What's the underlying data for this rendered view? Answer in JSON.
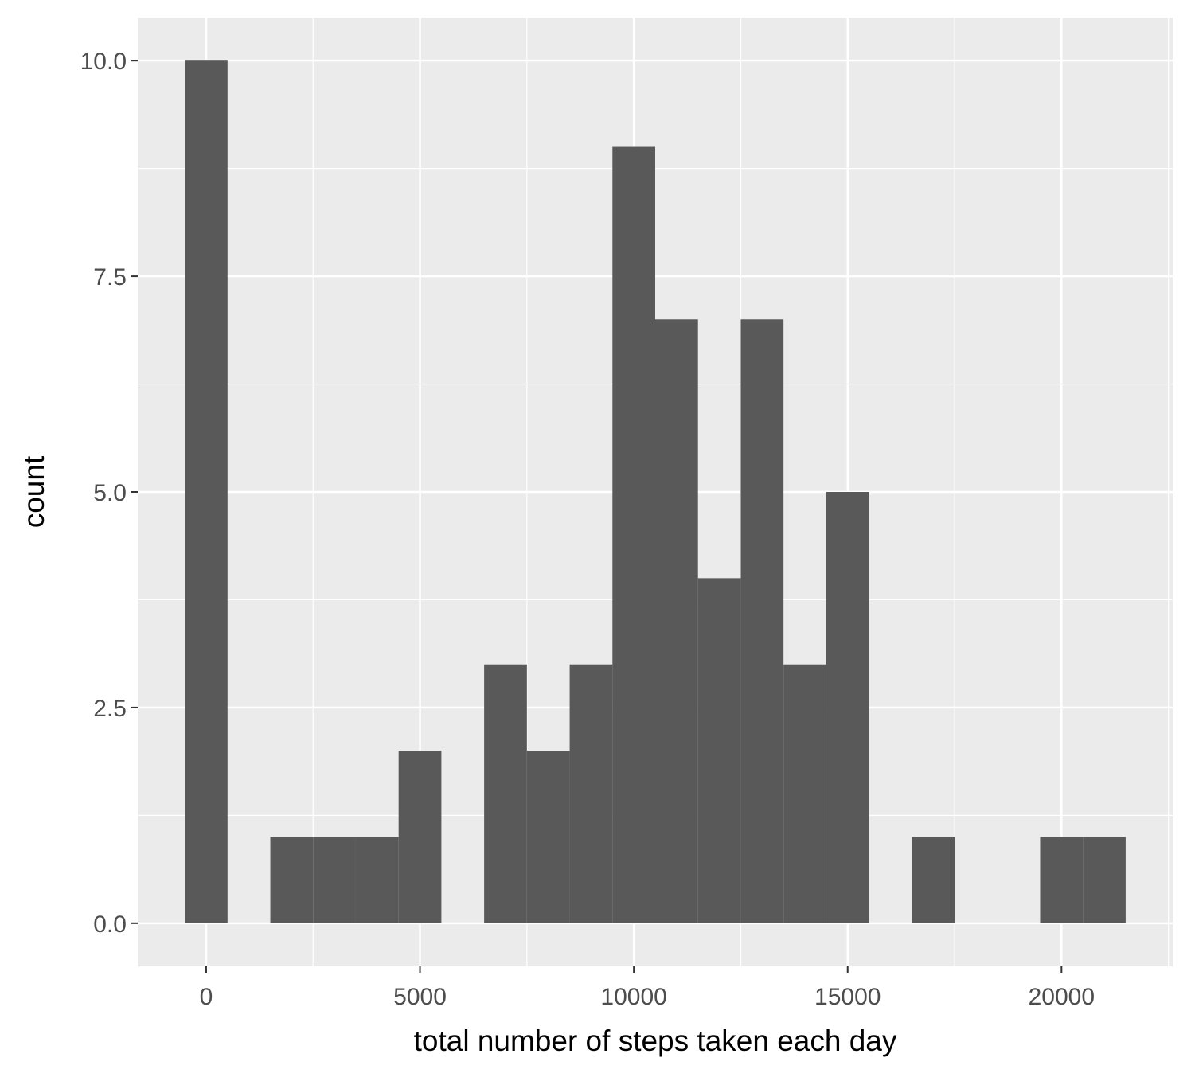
{
  "chart_data": {
    "type": "bar",
    "subtype": "histogram",
    "title": "",
    "xlabel": "total number of steps taken each day",
    "ylabel": "count",
    "xlim": [
      -1600,
      22600
    ],
    "ylim": [
      -0.5,
      10.5
    ],
    "x_ticks": [
      0,
      5000,
      10000,
      15000,
      20000
    ],
    "x_tick_labels": [
      "0",
      "5000",
      "10000",
      "15000",
      "20000"
    ],
    "y_ticks": [
      0,
      2.5,
      5,
      7.5,
      10
    ],
    "y_tick_labels": [
      "0.0",
      "2.5",
      "5.0",
      "7.5",
      "10.0"
    ],
    "bin_width": 1000,
    "bins": [
      {
        "x0": -500,
        "x1": 500,
        "count": 10
      },
      {
        "x0": 500,
        "x1": 1500,
        "count": 0
      },
      {
        "x0": 1500,
        "x1": 2500,
        "count": 1
      },
      {
        "x0": 2500,
        "x1": 3500,
        "count": 1
      },
      {
        "x0": 3500,
        "x1": 4500,
        "count": 1
      },
      {
        "x0": 4500,
        "x1": 5500,
        "count": 2
      },
      {
        "x0": 5500,
        "x1": 6500,
        "count": 0
      },
      {
        "x0": 6500,
        "x1": 7500,
        "count": 3
      },
      {
        "x0": 7500,
        "x1": 8500,
        "count": 2
      },
      {
        "x0": 8500,
        "x1": 9500,
        "count": 3
      },
      {
        "x0": 9500,
        "x1": 10500,
        "count": 9
      },
      {
        "x0": 10500,
        "x1": 11500,
        "count": 7
      },
      {
        "x0": 11500,
        "x1": 12500,
        "count": 4
      },
      {
        "x0": 12500,
        "x1": 13500,
        "count": 7
      },
      {
        "x0": 13500,
        "x1": 14500,
        "count": 3
      },
      {
        "x0": 14500,
        "x1": 15500,
        "count": 5
      },
      {
        "x0": 15500,
        "x1": 16500,
        "count": 0
      },
      {
        "x0": 16500,
        "x1": 17500,
        "count": 1
      },
      {
        "x0": 17500,
        "x1": 18500,
        "count": 0
      },
      {
        "x0": 18500,
        "x1": 19500,
        "count": 0
      },
      {
        "x0": 19500,
        "x1": 20500,
        "count": 1
      },
      {
        "x0": 20500,
        "x1": 21500,
        "count": 1
      }
    ],
    "grid": true,
    "legend": "none",
    "colors": {
      "panel_background": "#ebebeb",
      "grid": "#ffffff",
      "bar_fill": "#595959",
      "tick_mark": "#333333"
    }
  }
}
